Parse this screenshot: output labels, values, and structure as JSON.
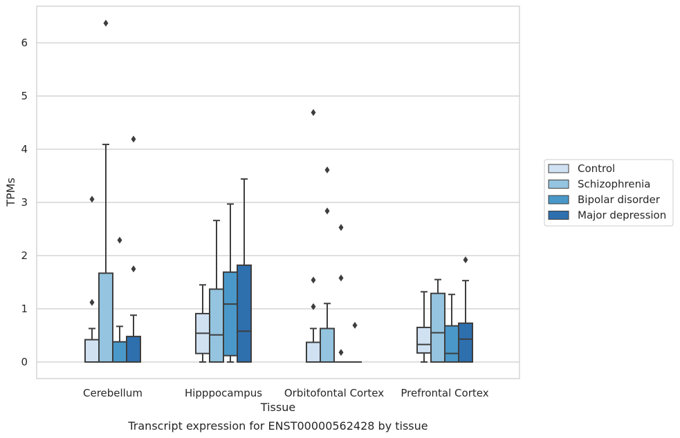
{
  "chart_data": {
    "type": "box",
    "title": "",
    "caption": "Transcript expression for ENST00000562428 by tissue",
    "xlabel": "Tissue",
    "ylabel": "TPMs",
    "ylim": [
      -0.3,
      6.7
    ],
    "yticks": [
      0,
      1,
      2,
      3,
      4,
      5,
      6
    ],
    "grid": "horizontal",
    "legend_position": "right",
    "categories": [
      "Cerebellum",
      "Hipppocampus",
      "Orbitofontal Cortex",
      "Prefrontal Cortex"
    ],
    "series": [
      {
        "name": "Control",
        "color": "#d0e1f2",
        "boxes": [
          {
            "whislo": 0,
            "q1": 0,
            "med": 0,
            "q3": 0.42,
            "whishi": 0.63,
            "fliers": [
              1.12,
              3.06
            ]
          },
          {
            "whislo": 0,
            "q1": 0.16,
            "med": 0.54,
            "q3": 0.91,
            "whishi": 1.45,
            "fliers": []
          },
          {
            "whislo": 0,
            "q1": 0,
            "med": 0,
            "q3": 0.37,
            "whishi": 0.63,
            "fliers": [
              1.04,
              1.54,
              4.69
            ]
          },
          {
            "whislo": 0,
            "q1": 0.17,
            "med": 0.33,
            "q3": 0.65,
            "whishi": 1.32,
            "fliers": []
          }
        ]
      },
      {
        "name": "Schizophrenia",
        "color": "#94c4df",
        "boxes": [
          {
            "whislo": 0,
            "q1": 0,
            "med": 0,
            "q3": 1.67,
            "whishi": 4.09,
            "fliers": [
              6.37
            ]
          },
          {
            "whislo": 0,
            "q1": 0,
            "med": 0.51,
            "q3": 1.37,
            "whishi": 2.66,
            "fliers": []
          },
          {
            "whislo": 0,
            "q1": 0,
            "med": 0,
            "q3": 0.63,
            "whishi": 1.1,
            "fliers": [
              2.84,
              3.61
            ]
          },
          {
            "whislo": 0,
            "q1": 0,
            "med": 0.55,
            "q3": 1.29,
            "whishi": 1.55,
            "fliers": []
          }
        ]
      },
      {
        "name": "Bipolar disorder",
        "color": "#4a98c9",
        "boxes": [
          {
            "whislo": 0,
            "q1": 0,
            "med": 0,
            "q3": 0.38,
            "whishi": 0.67,
            "fliers": [
              2.29
            ]
          },
          {
            "whislo": 0,
            "q1": 0.12,
            "med": 1.09,
            "q3": 1.69,
            "whishi": 2.97,
            "fliers": []
          },
          {
            "whislo": 0,
            "q1": 0,
            "med": 0,
            "q3": 0,
            "whishi": 0,
            "fliers": [
              0.18,
              1.58,
              2.53
            ]
          },
          {
            "whislo": 0,
            "q1": 0,
            "med": 0.16,
            "q3": 0.68,
            "whishi": 1.27,
            "fliers": []
          }
        ]
      },
      {
        "name": "Major depression",
        "color": "#2e6fae",
        "boxes": [
          {
            "whislo": 0,
            "q1": 0,
            "med": 0,
            "q3": 0.48,
            "whishi": 0.88,
            "fliers": [
              1.75,
              4.19
            ]
          },
          {
            "whislo": 0,
            "q1": 0,
            "med": 0.58,
            "q3": 1.82,
            "whishi": 3.44,
            "fliers": []
          },
          {
            "whislo": 0,
            "q1": 0,
            "med": 0,
            "q3": 0,
            "whishi": 0,
            "fliers": [
              0.69
            ]
          },
          {
            "whislo": 0,
            "q1": 0,
            "med": 0.43,
            "q3": 0.73,
            "whishi": 1.53,
            "fliers": [
              1.92
            ]
          }
        ]
      }
    ]
  }
}
